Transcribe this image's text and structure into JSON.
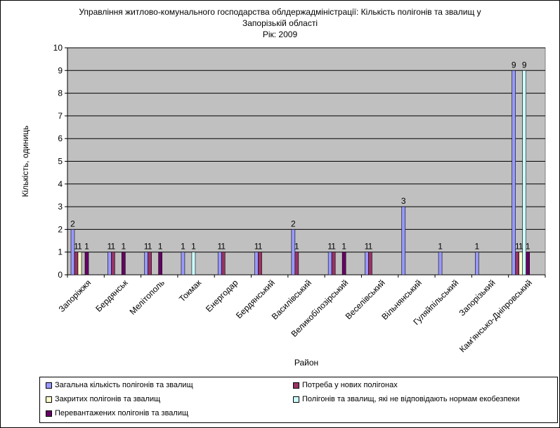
{
  "chart_data": {
    "type": "bar",
    "title_lines": [
      "Управління житлово-комунального господарства облдержадміністрації: Кількість полігонів та звалищ у",
      "Запорізькій області",
      "Рік: 2009"
    ],
    "xlabel": "Район",
    "ylabel": "Кількість, одиниць",
    "ylim": [
      0,
      10
    ],
    "yticks": [
      0,
      1,
      2,
      3,
      4,
      5,
      6,
      7,
      8,
      9,
      10
    ],
    "grid": true,
    "legend_position": "bottom",
    "categories": [
      "Запоріжжя",
      "Бердянськ",
      "Мелітополь",
      "Токмак",
      "Енергодар",
      "Бердянський",
      "Василівський",
      "Великобілозірський",
      "Веселівський",
      "Вільнянський",
      "Гуляйпільський",
      "Запорізький",
      "Кам'янсько-Дніпровський"
    ],
    "series": [
      {
        "name": "Загальна кількість полігонів та звалищ",
        "color": "#9999FF",
        "values": [
          2,
          1,
          1,
          1,
          1,
          1,
          2,
          1,
          1,
          3,
          1,
          1,
          9
        ]
      },
      {
        "name": "Потреба у нових полігонах",
        "color": "#993366",
        "values": [
          1,
          1,
          1,
          null,
          1,
          1,
          1,
          1,
          1,
          null,
          null,
          null,
          1
        ]
      },
      {
        "name": "Закритих полігонів та звалищ",
        "color": "#FFFFCC",
        "values": [
          1,
          null,
          null,
          null,
          null,
          null,
          null,
          null,
          null,
          null,
          null,
          null,
          1
        ]
      },
      {
        "name": "Полігонів та звалищ, які не відповідають нормам екобезпеки",
        "color": "#CCFFFF",
        "values": [
          null,
          null,
          null,
          1,
          null,
          null,
          null,
          null,
          null,
          null,
          null,
          null,
          9
        ]
      },
      {
        "name": "Перевантажених полігонів та звалищ",
        "color": "#660066",
        "values": [
          1,
          1,
          1,
          null,
          null,
          null,
          null,
          1,
          null,
          null,
          null,
          null,
          1
        ]
      }
    ],
    "plot_background": "#C0C0C0",
    "gridline_color": "#000000"
  }
}
